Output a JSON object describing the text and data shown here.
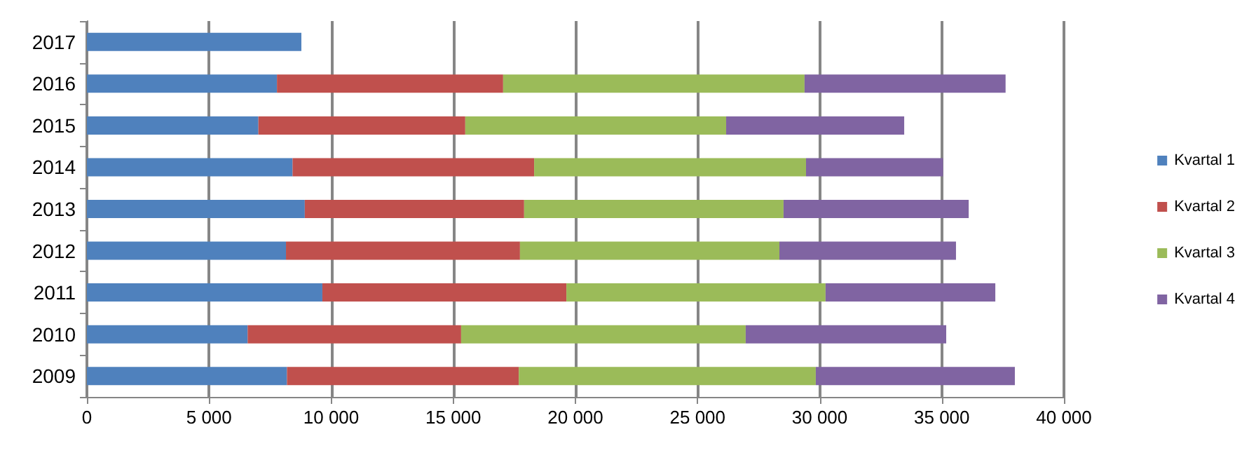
{
  "chart_data": {
    "type": "bar",
    "orientation": "horizontal",
    "stacked": true,
    "categories": [
      "2017",
      "2016",
      "2015",
      "2014",
      "2013",
      "2012",
      "2011",
      "2010",
      "2009"
    ],
    "series": [
      {
        "name": "Kvartal 1",
        "color": "#4f81bd",
        "values": [
          8780,
          7780,
          7020,
          8420,
          8920,
          8150,
          9640,
          6580,
          8190
        ]
      },
      {
        "name": "Kvartal 2",
        "color": "#c0504d",
        "values": [
          null,
          9260,
          8470,
          9890,
          8980,
          9580,
          9990,
          8740,
          9490
        ]
      },
      {
        "name": "Kvartal 3",
        "color": "#9bbb59",
        "values": [
          null,
          12340,
          10680,
          11130,
          10620,
          10620,
          10610,
          11650,
          12160
        ]
      },
      {
        "name": "Kvartal 4",
        "color": "#8064a2",
        "values": [
          null,
          8230,
          7290,
          5610,
          7580,
          7230,
          6950,
          8210,
          8150
        ]
      }
    ],
    "xlim": [
      0,
      40000
    ],
    "xticks": [
      0,
      {
        "value": 5000,
        "label": "5 000"
      },
      {
        "value": 10000,
        "label": "10 000"
      },
      {
        "value": 15000,
        "label": "15 000"
      },
      {
        "value": 20000,
        "label": "20 000"
      },
      {
        "value": 25000,
        "label": "25 000"
      },
      {
        "value": 30000,
        "label": "30 000"
      },
      {
        "value": 35000,
        "label": "35 000"
      },
      {
        "value": 40000,
        "label": "40 000"
      }
    ],
    "grid": "x",
    "legend": "right"
  }
}
